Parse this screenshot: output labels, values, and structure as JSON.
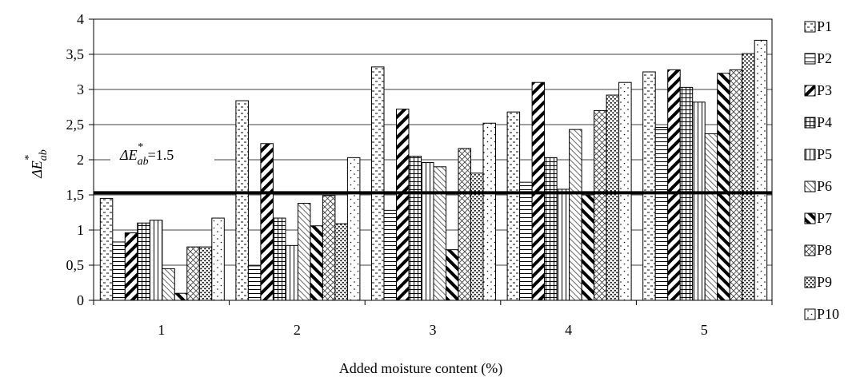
{
  "chart_data": {
    "type": "bar",
    "categories": [
      "1",
      "2",
      "3",
      "4",
      "5"
    ],
    "xlabel": "Added moisture content (%)",
    "ylabel": {
      "prefix": "ΔE",
      "superscript": "*",
      "subscript": "ab"
    },
    "ylim": [
      0,
      4
    ],
    "yticks": [
      "0",
      "0,5",
      "1",
      "1,5",
      "2",
      "2,5",
      "3",
      "3,5",
      "4"
    ],
    "grid": true,
    "legend_position": "right",
    "reference_line": {
      "value": 1.53,
      "label_prefix": "ΔE",
      "label_superscript": "*",
      "label_subscript": "ab",
      "label_suffix": "=1.5"
    },
    "series": [
      {
        "name": "P1",
        "pattern": "dash-dots",
        "values": [
          1.45,
          2.84,
          3.32,
          2.68,
          3.25
        ]
      },
      {
        "name": "P2",
        "pattern": "horizontal",
        "values": [
          0.83,
          0.49,
          1.28,
          1.68,
          2.46
        ]
      },
      {
        "name": "P3",
        "pattern": "diag-thick",
        "values": [
          0.96,
          2.23,
          2.72,
          3.1,
          3.28
        ]
      },
      {
        "name": "P4",
        "pattern": "grid",
        "values": [
          1.1,
          1.17,
          2.05,
          2.03,
          3.03
        ]
      },
      {
        "name": "P5",
        "pattern": "vertical",
        "values": [
          1.14,
          0.78,
          1.96,
          1.58,
          2.82
        ]
      },
      {
        "name": "P6",
        "pattern": "diag-thin",
        "values": [
          0.45,
          1.38,
          1.9,
          2.43,
          2.37
        ]
      },
      {
        "name": "P7",
        "pattern": "back-thick",
        "values": [
          0.1,
          1.06,
          0.72,
          1.5,
          3.23
        ]
      },
      {
        "name": "P8",
        "pattern": "cross",
        "values": [
          0.76,
          1.49,
          2.16,
          2.7,
          3.28
        ]
      },
      {
        "name": "P9",
        "pattern": "dots",
        "values": [
          0.76,
          1.09,
          1.81,
          2.92,
          3.51
        ]
      },
      {
        "name": "P10",
        "pattern": "sparse-dots",
        "values": [
          1.17,
          2.03,
          2.52,
          3.1,
          3.7
        ]
      }
    ]
  }
}
